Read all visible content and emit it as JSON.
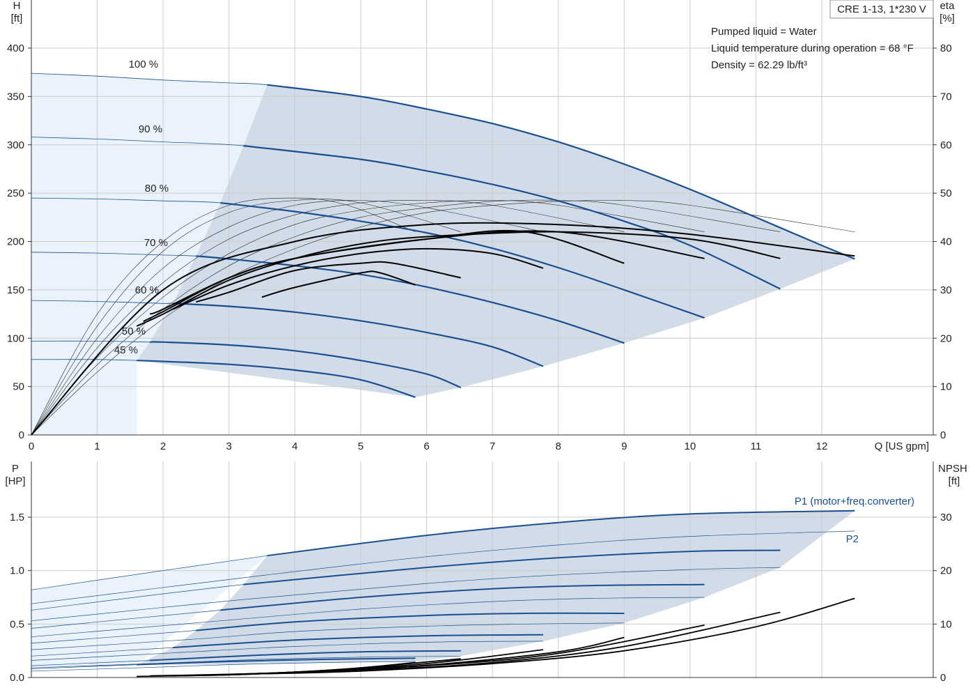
{
  "title": "CRE 1-13, 1*230 V",
  "info": [
    "Pumped liquid = Water",
    "Liquid temperature during operation = 68 °F",
    "Density = 62.29 lb/ft³"
  ],
  "colors": {
    "blue": "#1a4f8f",
    "shade": "#d1dce8",
    "light": "#eaf3fc",
    "grid": "#cccccc",
    "black": "#000000"
  },
  "chart_data": [
    {
      "type": "line",
      "name": "head-efficiency",
      "xlabel": "Q [US gpm]",
      "ylabel_left": "H\n[ft]",
      "ylabel_right": "eta\n[%]",
      "xlim": [
        0,
        13.7
      ],
      "ylim_left": [
        0,
        400
      ],
      "ylim_right": [
        0,
        80
      ],
      "xticks": [
        0,
        1,
        2,
        3,
        4,
        5,
        6,
        7,
        8,
        9,
        10,
        11,
        12
      ],
      "yticks_left": [
        0,
        50,
        100,
        150,
        200,
        250,
        300,
        350,
        400
      ],
      "yticks_right": [
        0,
        10,
        20,
        30,
        40,
        50,
        60,
        70,
        80
      ],
      "grid": true,
      "head_series": [
        {
          "label": "100 %",
          "x": [
            0,
            1,
            2,
            3,
            3.58,
            5,
            6,
            7,
            8,
            9,
            10,
            11,
            12,
            12.5
          ],
          "y": [
            374,
            371,
            367,
            364,
            362,
            350,
            337,
            322,
            303,
            280,
            254,
            225,
            196,
            182
          ]
        },
        {
          "label": "90 %",
          "x": [
            0,
            1,
            2,
            3.22,
            5,
            6,
            7,
            8,
            9,
            10,
            11.37
          ],
          "y": [
            308,
            306,
            303,
            299,
            285,
            273,
            259,
            242,
            221,
            196,
            151
          ]
        },
        {
          "label": "80 %",
          "x": [
            0,
            1,
            2,
            2.87,
            4,
            5,
            6,
            7,
            8,
            9,
            10.22
          ],
          "y": [
            245,
            244,
            242,
            240,
            231,
            221,
            209,
            193,
            173,
            150,
            121
          ]
        },
        {
          "label": "70 %",
          "x": [
            0,
            1,
            2,
            2.5,
            3,
            4,
            5,
            6,
            7,
            8,
            9.0
          ],
          "y": [
            189,
            188,
            186,
            185,
            182,
            175,
            166,
            153,
            137,
            118,
            95
          ]
        },
        {
          "label": "60 %",
          "x": [
            0,
            1,
            2,
            2.15,
            3,
            4,
            5,
            6,
            7,
            7.77
          ],
          "y": [
            139,
            138,
            136,
            136,
            133,
            127,
            118,
            106,
            91,
            71
          ]
        },
        {
          "label": "50 %",
          "x": [
            0,
            1,
            1.8,
            2,
            3,
            4,
            5,
            6,
            6.52
          ],
          "y": [
            97,
            97,
            96,
            96,
            93,
            87,
            77,
            63,
            49
          ]
        },
        {
          "label": "45 %",
          "x": [
            0,
            1,
            1.6,
            2,
            3,
            4,
            5,
            5.83
          ],
          "y": [
            78,
            78,
            77,
            76,
            73,
            67,
            57,
            39
          ]
        }
      ],
      "eta_series": [
        {
          "label": "100 %",
          "x": [
            0,
            2,
            4,
            6,
            8,
            10,
            12.5
          ],
          "y": [
            0,
            30,
            40,
            43.5,
            43.5,
            41.5,
            37
          ]
        },
        {
          "label": "90 %",
          "x": [
            1.6,
            2,
            3,
            4,
            5,
            6,
            8,
            10,
            11.37
          ],
          "y": [
            22.5,
            25,
            32,
            36.5,
            39.5,
            41,
            42,
            40.5,
            36.5
          ]
        },
        {
          "label": "80 %",
          "x": [
            1.7,
            2,
            3,
            4,
            6,
            8,
            10.22
          ],
          "y": [
            23.5,
            25.5,
            32.5,
            36.5,
            40.5,
            42,
            36.5
          ]
        },
        {
          "label": "70 %",
          "x": [
            1.8,
            2,
            3,
            4,
            6,
            7.5,
            9.0
          ],
          "y": [
            25,
            26,
            32.5,
            36.5,
            40.5,
            42,
            35.5
          ]
        },
        {
          "label": "60 %",
          "x": [
            2.15,
            3,
            4,
            5,
            6,
            7.0,
            7.77
          ],
          "y": [
            26,
            31,
            35,
            37.5,
            38.5,
            37.5,
            34.5
          ]
        },
        {
          "label": "50 %",
          "x": [
            2.5,
            3,
            4,
            5,
            5.5,
            6.52
          ],
          "y": [
            27.5,
            29.5,
            34,
            35.5,
            35.5,
            32.5
          ]
        },
        {
          "label": "45 %",
          "x": [
            3.5,
            4,
            5,
            5.3,
            5.83
          ],
          "y": [
            28.5,
            30.5,
            33.5,
            33.5,
            31
          ]
        }
      ],
      "eta_thin_series": [
        {
          "x": [
            0,
            1,
            2,
            3,
            4,
            4.8,
            5.83
          ],
          "y": [
            0,
            25,
            40,
            47.5,
            49,
            47.5,
            42
          ]
        },
        {
          "x": [
            0,
            1,
            2,
            3,
            4,
            5,
            6.52
          ],
          "y": [
            0,
            22.5,
            38,
            46,
            48.5,
            48,
            42
          ]
        },
        {
          "x": [
            0,
            1,
            2,
            3,
            4,
            5,
            6,
            7.77
          ],
          "y": [
            0,
            20,
            34.5,
            43,
            47.5,
            48.5,
            47,
            42
          ]
        },
        {
          "x": [
            0,
            1,
            2,
            3,
            4,
            5,
            6,
            7,
            9.0
          ],
          "y": [
            0,
            18,
            31.5,
            40.5,
            45.5,
            48,
            48.5,
            47.5,
            42
          ]
        },
        {
          "x": [
            0,
            1,
            2,
            3,
            4,
            5,
            6,
            7,
            8,
            10.22
          ],
          "y": [
            0,
            16,
            28.5,
            37.5,
            43.5,
            46.5,
            48,
            48.5,
            47.5,
            42
          ]
        },
        {
          "x": [
            0,
            1,
            2,
            3,
            4,
            5,
            6,
            7,
            8,
            9,
            11.37
          ],
          "y": [
            0,
            14.5,
            26,
            35,
            41,
            45,
            47,
            48.3,
            48.5,
            47.5,
            42
          ]
        },
        {
          "x": [
            0,
            1,
            2,
            3,
            4,
            5,
            6,
            7,
            8,
            9,
            10,
            12.5
          ],
          "y": [
            0,
            13,
            24,
            32.5,
            38.5,
            43,
            46,
            47.5,
            48.3,
            48.5,
            47.5,
            42
          ]
        }
      ],
      "operating_region": {
        "left_boundary_x": [
          0.0,
          3.58,
          3.22,
          2.87,
          2.5,
          2.15,
          1.8,
          1.6
        ],
        "left_boundary_y": [
          374,
          362,
          299,
          240,
          185,
          136,
          96,
          77
        ],
        "right_boundary_x": [
          5.83,
          6.52,
          7.77,
          9.0,
          10.22,
          11.37,
          12.5
        ],
        "right_boundary_y": [
          39,
          49,
          71,
          95,
          121,
          151,
          182
        ]
      },
      "speed_labels": [
        "100 %",
        "90 %",
        "80 %",
        "70 %",
        "60 %",
        "50 %",
        "45 %"
      ]
    },
    {
      "type": "line",
      "name": "power-npsh",
      "ylabel_left": "P\n[HP]",
      "ylabel_right": "NPSH\n[ft]",
      "xlim": [
        0,
        13.7
      ],
      "ylim_left": [
        0,
        1.65
      ],
      "ylim_right": [
        0,
        33
      ],
      "yticks_left": [
        0.0,
        0.5,
        1.0,
        1.5
      ],
      "yticks_left_labels": [
        "0.0",
        "0.5",
        "1.0",
        "1.5"
      ],
      "yticks_right": [
        0,
        10,
        20,
        30
      ],
      "grid": true,
      "series_labels": {
        "p1": "P1 (motor+freq.converter)",
        "p2": "P2"
      },
      "p1_series": [
        {
          "x": [
            0,
            3.58,
            6,
            8,
            10,
            12.5
          ],
          "y": [
            0.82,
            1.14,
            1.33,
            1.45,
            1.53,
            1.56
          ]
        },
        {
          "x": [
            0,
            3.22,
            6,
            8,
            10,
            11.37
          ],
          "y": [
            0.63,
            0.87,
            1.03,
            1.12,
            1.18,
            1.19
          ]
        },
        {
          "x": [
            0,
            2.87,
            5,
            7,
            8.5,
            10.22
          ],
          "y": [
            0.46,
            0.63,
            0.75,
            0.83,
            0.86,
            0.87
          ]
        },
        {
          "x": [
            0,
            2.5,
            4,
            6,
            7.5,
            9.0
          ],
          "y": [
            0.32,
            0.44,
            0.52,
            0.58,
            0.6,
            0.6
          ]
        },
        {
          "x": [
            0,
            2.15,
            4,
            6,
            7.77
          ],
          "y": [
            0.2,
            0.28,
            0.35,
            0.39,
            0.4
          ]
        },
        {
          "x": [
            0,
            1.8,
            3.5,
            5,
            6.52
          ],
          "y": [
            0.11,
            0.16,
            0.21,
            0.24,
            0.25
          ]
        },
        {
          "x": [
            0,
            1.6,
            3,
            4.5,
            5.83
          ],
          "y": [
            0.08,
            0.12,
            0.15,
            0.17,
            0.18
          ]
        }
      ],
      "p2_series": [
        {
          "x": [
            0,
            3.58,
            6,
            8,
            10,
            12.5
          ],
          "y": [
            0.69,
            0.96,
            1.13,
            1.24,
            1.32,
            1.37
          ]
        },
        {
          "x": [
            0,
            3.22,
            6,
            8,
            10,
            11.37
          ],
          "y": [
            0.53,
            0.73,
            0.88,
            0.96,
            1.01,
            1.03
          ]
        },
        {
          "x": [
            0,
            2.87,
            5,
            7,
            8.5,
            10.22
          ],
          "y": [
            0.38,
            0.53,
            0.64,
            0.71,
            0.74,
            0.75
          ]
        },
        {
          "x": [
            0,
            2.5,
            4,
            6,
            7.5,
            9.0
          ],
          "y": [
            0.26,
            0.36,
            0.43,
            0.48,
            0.5,
            0.51
          ]
        },
        {
          "x": [
            0,
            2.15,
            4,
            6,
            7.77
          ],
          "y": [
            0.16,
            0.23,
            0.29,
            0.33,
            0.34
          ]
        },
        {
          "x": [
            0,
            1.8,
            3.5,
            5,
            6.52
          ],
          "y": [
            0.09,
            0.13,
            0.17,
            0.19,
            0.2
          ]
        },
        {
          "x": [
            0,
            1.6,
            3,
            4.5,
            5.83
          ],
          "y": [
            0.06,
            0.09,
            0.12,
            0.14,
            0.15
          ]
        }
      ],
      "npsh_series": [
        {
          "x": [
            1.6,
            3,
            4,
            5,
            5.83
          ],
          "y": [
            0.2,
            0.5,
            1.0,
            1.8,
            2.8
          ]
        },
        {
          "x": [
            1.8,
            3,
            4,
            5,
            6.52
          ],
          "y": [
            0.3,
            0.6,
            1.0,
            1.8,
            3.5
          ]
        },
        {
          "x": [
            2.15,
            3,
            4,
            6,
            7.77
          ],
          "y": [
            0.3,
            0.5,
            1.0,
            2.6,
            5.2
          ]
        },
        {
          "x": [
            2.5,
            4,
            6,
            8,
            9.0
          ],
          "y": [
            0.4,
            1.0,
            2.3,
            4.8,
            7.5
          ]
        },
        {
          "x": [
            2.87,
            4,
            6,
            8,
            10.22
          ],
          "y": [
            0.5,
            1.0,
            2.2,
            4.5,
            9.8
          ]
        },
        {
          "x": [
            3.22,
            5,
            7,
            9,
            11.37
          ],
          "y": [
            0.6,
            1.3,
            2.8,
            5.8,
            12.2
          ]
        },
        {
          "x": [
            3.58,
            5,
            7,
            9,
            11,
            12.5
          ],
          "y": [
            0.7,
            1.2,
            2.6,
            5.0,
            9.5,
            14.8
          ]
        }
      ],
      "operating_region": {
        "upper_x": [
          3.58,
          6,
          8,
          10,
          12.5,
          11.37,
          10.22,
          9.0,
          7.77,
          6.52,
          5.83
        ],
        "upper_y": [
          1.14,
          1.33,
          1.45,
          1.53,
          1.56,
          1.03,
          0.75,
          0.51,
          0.34,
          0.2,
          0.15
        ],
        "lower_x": [
          5.83,
          4.5,
          3.0,
          1.6,
          2.15,
          2.5,
          2.87,
          3.22,
          3.58
        ],
        "lower_y": [
          0.15,
          0.14,
          0.12,
          0.12,
          0.28,
          0.44,
          0.63,
          0.87,
          1.14
        ]
      }
    }
  ]
}
